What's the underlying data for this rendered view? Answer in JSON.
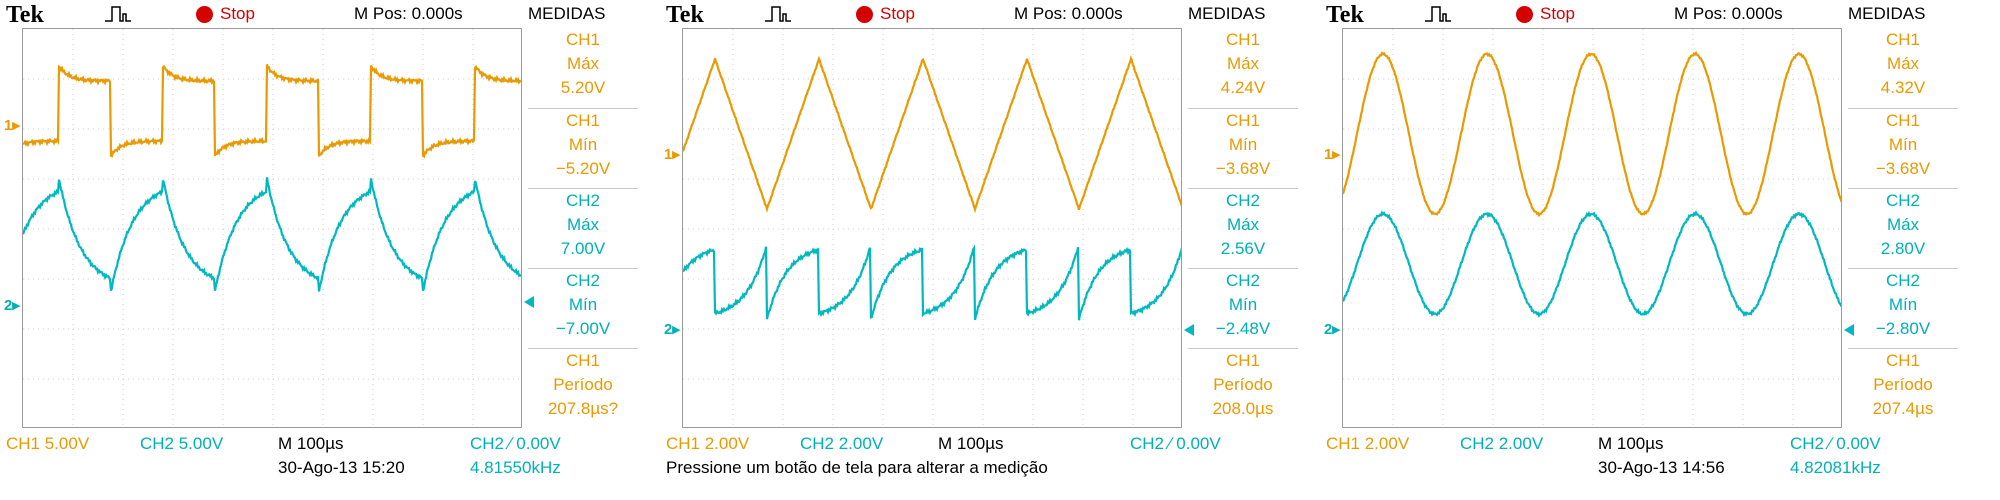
{
  "panels": [
    {
      "brand": "Tek",
      "status": "Stop",
      "mpos": "M Pos: 0.000s",
      "meas_title": "MEDIDAS",
      "measurements": [
        {
          "channel": "CH1",
          "label": "Máx",
          "value": "5.20V",
          "color": "#e89a00"
        },
        {
          "channel": "CH1",
          "label": "Mín",
          "value": "−5.20V",
          "color": "#e89a00"
        },
        {
          "channel": "CH2",
          "label": "Máx",
          "value": "7.00V",
          "color": "#00b0b8"
        },
        {
          "channel": "CH2",
          "label": "Mín",
          "value": "−7.00V",
          "color": "#00b0b8"
        },
        {
          "channel": "CH1",
          "label": "Período",
          "value": "207.8µs?",
          "color": "#e89a00"
        }
      ],
      "ch1_scale": "CH1  5.00V",
      "ch2_scale": "CH2  5.00V",
      "timebase": "M 100µs",
      "trigger": "CH2 ∕ 0.00V",
      "datetime": "30-Ago-13 15:20",
      "frequency": "4.81550kHz",
      "message": ""
    },
    {
      "brand": "Tek",
      "status": "Stop",
      "mpos": "M Pos: 0.000s",
      "meas_title": "MEDIDAS",
      "measurements": [
        {
          "channel": "CH1",
          "label": "Máx",
          "value": "4.24V",
          "color": "#e89a00"
        },
        {
          "channel": "CH1",
          "label": "Mín",
          "value": "−3.68V",
          "color": "#e89a00"
        },
        {
          "channel": "CH2",
          "label": "Máx",
          "value": "2.56V",
          "color": "#00b0b8"
        },
        {
          "channel": "CH2",
          "label": "Mín",
          "value": "−2.48V",
          "color": "#00b0b8"
        },
        {
          "channel": "CH1",
          "label": "Período",
          "value": "208.0µs",
          "color": "#e89a00"
        }
      ],
      "ch1_scale": "CH1  2.00V",
      "ch2_scale": "CH2  2.00V",
      "timebase": "M 100µs",
      "trigger": "CH2 ∕ 0.00V",
      "datetime": "",
      "frequency": "",
      "message": "Pressione um botão de tela para alterar a medição"
    },
    {
      "brand": "Tek",
      "status": "Stop",
      "mpos": "M Pos: 0.000s",
      "meas_title": "MEDIDAS",
      "measurements": [
        {
          "channel": "CH1",
          "label": "Máx",
          "value": "4.32V",
          "color": "#e89a00"
        },
        {
          "channel": "CH1",
          "label": "Mín",
          "value": "−3.68V",
          "color": "#e89a00"
        },
        {
          "channel": "CH2",
          "label": "Máx",
          "value": "2.80V",
          "color": "#00b0b8"
        },
        {
          "channel": "CH2",
          "label": "Mín",
          "value": "−2.80V",
          "color": "#00b0b8"
        },
        {
          "channel": "CH1",
          "label": "Período",
          "value": "207.4µs",
          "color": "#e89a00"
        }
      ],
      "ch1_scale": "CH1  2.00V",
      "ch2_scale": "CH2  2.00V",
      "timebase": "M 100µs",
      "trigger": "CH2 ∕ 0.00V",
      "datetime": "30-Ago-13 14:56",
      "frequency": "4.82081kHz",
      "message": ""
    }
  ],
  "colors": {
    "ch1": "#e89a00",
    "ch2": "#00b0b8",
    "stop": "#d50000"
  },
  "icons": {
    "trigger_type": "pulse-icon",
    "run_state": "stop-dot-icon"
  }
}
